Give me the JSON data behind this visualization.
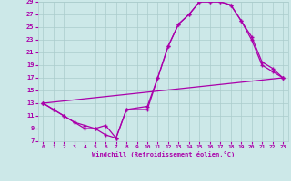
{
  "xlabel": "Windchill (Refroidissement éolien,°C)",
  "bg_color": "#cce8e8",
  "grid_color": "#aacccc",
  "line_color": "#aa00aa",
  "xlim": [
    -0.5,
    23.5
  ],
  "ylim": [
    7,
    29
  ],
  "xticks": [
    0,
    1,
    2,
    3,
    4,
    5,
    6,
    7,
    8,
    9,
    10,
    11,
    12,
    13,
    14,
    15,
    16,
    17,
    18,
    19,
    20,
    21,
    22,
    23
  ],
  "yticks": [
    7,
    9,
    11,
    13,
    15,
    17,
    19,
    21,
    23,
    25,
    27,
    29
  ],
  "line1_x": [
    0,
    1,
    2,
    3,
    4,
    5,
    6,
    7,
    8,
    10,
    11,
    12,
    13,
    14,
    15,
    16,
    17,
    18,
    19,
    20,
    21,
    22,
    23
  ],
  "line1_y": [
    13,
    12,
    11,
    10,
    9,
    9,
    8,
    7.5,
    12,
    12,
    17,
    22,
    25.5,
    27,
    29,
    29,
    29,
    28.5,
    26,
    23,
    19,
    18,
    17
  ],
  "line2_x": [
    0,
    23
  ],
  "line2_y": [
    13,
    17
  ],
  "line3_x": [
    0,
    1,
    2,
    3,
    4,
    5,
    6,
    7,
    8,
    10,
    11,
    12,
    13,
    14,
    15,
    16,
    17,
    18,
    19,
    20,
    21,
    22,
    23
  ],
  "line3_y": [
    13,
    12,
    11,
    10,
    9.5,
    9,
    9.5,
    7.5,
    12,
    12.5,
    17,
    22,
    25.5,
    27,
    29,
    29,
    29,
    28.5,
    26,
    23.5,
    19.5,
    18.5,
    17
  ]
}
